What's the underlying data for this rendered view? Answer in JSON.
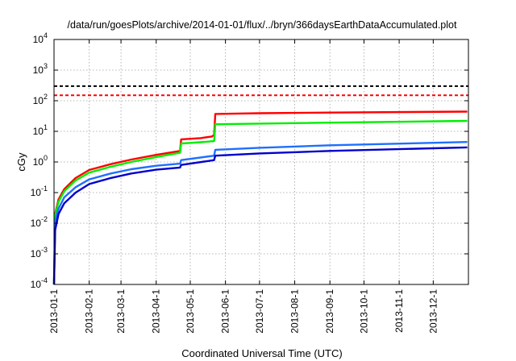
{
  "chart_data": {
    "type": "line",
    "title": "/data/run/goesPlots/archive/2014-01-01/flux/../bryn/366daysEarthDataAccumulated.plot",
    "xlabel": "Coordinated Universal Time (UTC)",
    "ylabel": "cGy",
    "y_scale": "log",
    "ylim": [
      0.0001,
      10000
    ],
    "xlim": [
      "2013-01-01",
      "2013-12-31"
    ],
    "grid": true,
    "legend": "none",
    "x_ticks": [
      "2013-01-1",
      "2013-02-1",
      "2013-03-1",
      "2013-04-1",
      "2013-05-1",
      "2013-06-1",
      "2013-07-1",
      "2013-08-1",
      "2013-09-1",
      "2013-10-1",
      "2013-11-1",
      "2013-12-1"
    ],
    "y_ticks": [
      {
        "value": 0.0001,
        "base": "10",
        "exp": "-4"
      },
      {
        "value": 0.001,
        "base": "10",
        "exp": "-3"
      },
      {
        "value": 0.01,
        "base": "10",
        "exp": "-2"
      },
      {
        "value": 0.1,
        "base": "10",
        "exp": "-1"
      },
      {
        "value": 1,
        "base": "10",
        "exp": "0"
      },
      {
        "value": 10,
        "base": "10",
        "exp": "1"
      },
      {
        "value": 100,
        "base": "10",
        "exp": "2"
      },
      {
        "value": 1000,
        "base": "10",
        "exp": "3"
      },
      {
        "value": 10000,
        "base": "10",
        "exp": "4"
      }
    ],
    "thresholds": [
      {
        "value": 300,
        "color": "#000000",
        "style": "dashed"
      },
      {
        "value": 150,
        "color": "#ff0000",
        "style": "dashed"
      }
    ],
    "series": [
      {
        "color": "#ff0000",
        "points": [
          [
            "2013-01-01",
            0.0001
          ],
          [
            "2013-01-02",
            0.02
          ],
          [
            "2013-01-05",
            0.06
          ],
          [
            "2013-01-10",
            0.13
          ],
          [
            "2013-01-20",
            0.3
          ],
          [
            "2013-02-01",
            0.55
          ],
          [
            "2013-02-20",
            0.85
          ],
          [
            "2013-03-10",
            1.2
          ],
          [
            "2013-04-01",
            1.7
          ],
          [
            "2013-04-22",
            2.3
          ],
          [
            "2013-04-23",
            5.5
          ],
          [
            "2013-05-10",
            6.0
          ],
          [
            "2013-05-20",
            6.8
          ],
          [
            "2013-05-22",
            7.5
          ],
          [
            "2013-05-23",
            37
          ],
          [
            "2013-07-01",
            39
          ],
          [
            "2013-09-01",
            41
          ],
          [
            "2013-12-31",
            44
          ]
        ]
      },
      {
        "color": "#00ee00",
        "points": [
          [
            "2013-01-01",
            0.0001
          ],
          [
            "2013-01-02",
            0.018
          ],
          [
            "2013-01-05",
            0.05
          ],
          [
            "2013-01-10",
            0.11
          ],
          [
            "2013-01-20",
            0.25
          ],
          [
            "2013-02-01",
            0.45
          ],
          [
            "2013-02-20",
            0.7
          ],
          [
            "2013-03-10",
            1.0
          ],
          [
            "2013-04-01",
            1.45
          ],
          [
            "2013-04-22",
            2.0
          ],
          [
            "2013-04-23",
            4.0
          ],
          [
            "2013-05-10",
            4.4
          ],
          [
            "2013-05-22",
            4.8
          ],
          [
            "2013-05-23",
            17
          ],
          [
            "2013-08-01",
            18.5
          ],
          [
            "2013-12-31",
            22
          ]
        ]
      },
      {
        "color": "#1e6fff",
        "points": [
          [
            "2013-01-01",
            0.0001
          ],
          [
            "2013-01-02",
            0.012
          ],
          [
            "2013-01-05",
            0.03
          ],
          [
            "2013-01-10",
            0.07
          ],
          [
            "2013-01-20",
            0.15
          ],
          [
            "2013-02-01",
            0.27
          ],
          [
            "2013-02-20",
            0.42
          ],
          [
            "2013-03-10",
            0.58
          ],
          [
            "2013-04-01",
            0.75
          ],
          [
            "2013-04-22",
            0.88
          ],
          [
            "2013-04-23",
            1.15
          ],
          [
            "2013-05-22",
            1.6
          ],
          [
            "2013-05-23",
            2.5
          ],
          [
            "2013-07-01",
            2.9
          ],
          [
            "2013-09-01",
            3.5
          ],
          [
            "2013-12-31",
            4.5
          ]
        ]
      },
      {
        "color": "#0000cc",
        "points": [
          [
            "2013-01-01",
            0.0001
          ],
          [
            "2013-01-02",
            0.006
          ],
          [
            "2013-01-05",
            0.02
          ],
          [
            "2013-01-10",
            0.045
          ],
          [
            "2013-01-20",
            0.1
          ],
          [
            "2013-02-01",
            0.19
          ],
          [
            "2013-02-20",
            0.3
          ],
          [
            "2013-03-10",
            0.42
          ],
          [
            "2013-04-01",
            0.56
          ],
          [
            "2013-04-22",
            0.66
          ],
          [
            "2013-04-23",
            0.8
          ],
          [
            "2013-05-22",
            1.15
          ],
          [
            "2013-05-23",
            1.6
          ],
          [
            "2013-07-01",
            1.9
          ],
          [
            "2013-09-01",
            2.3
          ],
          [
            "2013-12-31",
            3.0
          ]
        ]
      }
    ]
  }
}
